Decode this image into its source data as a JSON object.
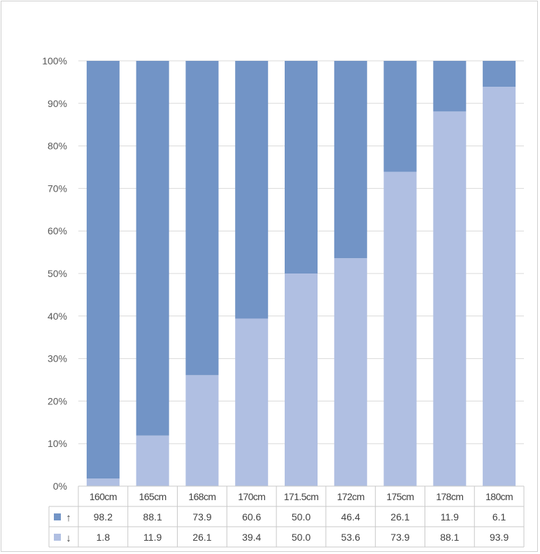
{
  "chart_data": {
    "type": "bar",
    "stacked": true,
    "normalized": true,
    "title": "",
    "xlabel": "",
    "ylabel": "",
    "ylim": [
      0,
      100
    ],
    "y_ticks": [
      "0%",
      "10%",
      "20%",
      "30%",
      "40%",
      "50%",
      "60%",
      "70%",
      "80%",
      "90%",
      "100%"
    ],
    "categories": [
      "160cm",
      "165cm",
      "168cm",
      "170cm",
      "171.5cm",
      "172cm",
      "175cm",
      "178cm",
      "180cm"
    ],
    "series": [
      {
        "name": "↓",
        "color": "#b0bfe2",
        "values": [
          "1.8",
          "11.9",
          "26.1",
          "39.4",
          "50.0",
          "53.6",
          "73.9",
          "88.1",
          "93.9"
        ]
      },
      {
        "name": "↑",
        "color": "#7294c6",
        "values": [
          "98.2",
          "88.1",
          "73.9",
          "60.6",
          "50.0",
          "46.4",
          "26.1",
          "11.9",
          "6.1"
        ]
      }
    ],
    "data_table_rows": [
      "↑",
      "↓"
    ],
    "grid": true,
    "legend": "data-table"
  }
}
